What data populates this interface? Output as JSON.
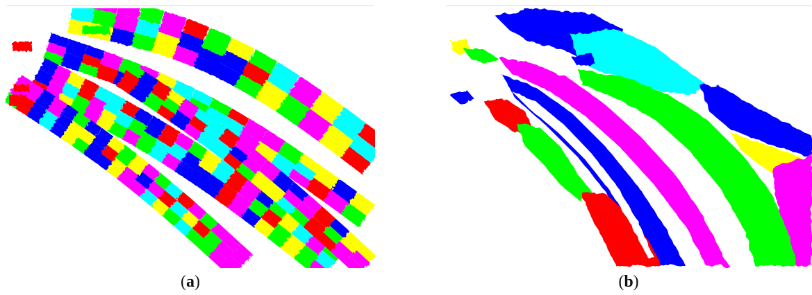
{
  "figure": {
    "panels": [
      {
        "id": "a",
        "caption_open": "(",
        "caption_letter": "a",
        "caption_close": ")",
        "palette": [
          "#ff0000",
          "#00ff00",
          "#0000ff",
          "#00ffff",
          "#ff00ff",
          "#ffff00"
        ]
      },
      {
        "id": "b",
        "caption_open": "(",
        "caption_letter": "b",
        "caption_close": ")",
        "palette": [
          "#ff0000",
          "#00ff00",
          "#0000ff",
          "#00ffff",
          "#ff00ff",
          "#ffff00"
        ]
      }
    ]
  }
}
